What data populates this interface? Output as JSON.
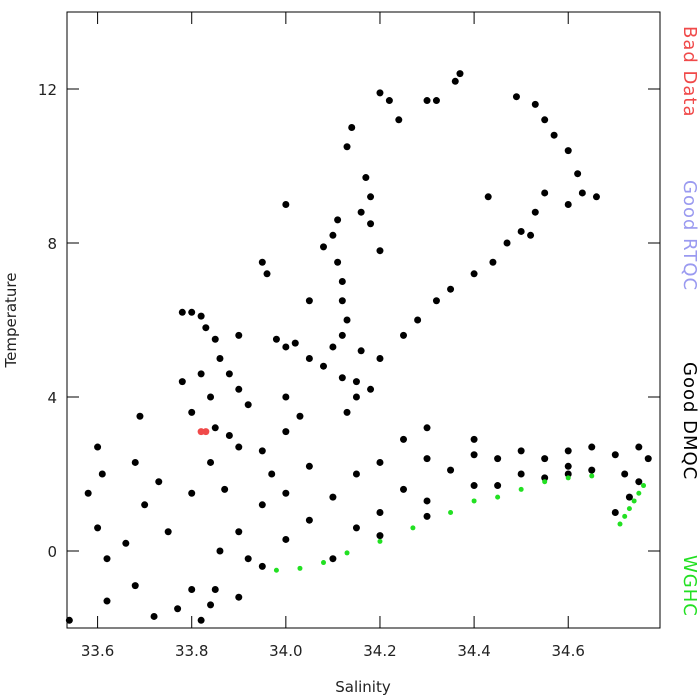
{
  "chart_data": {
    "type": "scatter",
    "x_label": "Salinity",
    "y_label": "Temperature",
    "xlim": [
      33.535,
      34.795
    ],
    "ylim": [
      -2,
      14
    ],
    "xticks": [
      33.6,
      33.8,
      {
        "value": 34,
        "label": "34.0"
      },
      34.2,
      34.4,
      34.6
    ],
    "yticks": [
      0,
      4,
      8,
      12
    ],
    "legend_position": "right",
    "series": [
      {
        "name": "Bad Data",
        "color": "#f04a4a",
        "x": [
          33.82,
          33.83
        ],
        "y": [
          3.1,
          3.1
        ]
      },
      {
        "name": "Good RTQC",
        "color": "#9a9af0",
        "x": [],
        "y": []
      },
      {
        "name": "Good DMQC",
        "color": "#000000",
        "x": [
          34.2,
          34.22,
          34.24,
          34.3,
          34.32,
          34.36,
          34.37,
          34.49,
          34.53,
          34.55,
          34.57,
          34.6,
          34.62,
          34.63,
          34.66,
          34.6,
          34.55,
          34.53,
          34.52,
          34.5,
          34.43,
          34.47,
          34.44,
          34.4,
          34.35,
          34.32,
          34.28,
          34.25,
          34.2,
          34.15,
          34.13,
          34.14,
          34.17,
          34.18,
          34.16,
          34.18,
          34.11,
          34.1,
          34.08,
          34.11,
          34.12,
          34.12,
          34.13,
          34.12,
          34.2,
          34.0,
          33.95,
          33.96,
          34.05,
          34.1,
          34.05,
          34.08,
          34.12,
          34.15,
          34.13,
          34.18,
          34.16,
          33.9,
          33.98,
          34.0,
          34.02,
          34.0,
          34.03,
          33.78,
          33.8,
          33.82,
          33.83,
          33.85,
          33.86,
          33.88,
          33.9,
          33.92,
          33.82,
          33.84,
          33.78,
          33.8,
          33.85,
          33.88,
          33.9,
          33.54,
          33.58,
          33.6,
          33.61,
          33.6,
          33.62,
          33.62,
          33.66,
          33.68,
          33.69,
          33.68,
          33.7,
          33.72,
          33.73,
          33.75,
          33.77,
          33.8,
          33.82,
          33.84,
          33.85,
          33.86,
          33.8,
          33.84,
          33.87,
          33.9,
          33.92,
          33.95,
          33.97,
          34.0,
          34.0,
          34.05,
          34.05,
          34.1,
          34.15,
          34.15,
          34.2,
          34.2,
          34.25,
          34.3,
          34.3,
          34.35,
          34.4,
          34.4,
          34.45,
          34.5,
          34.5,
          34.55,
          34.6,
          34.6,
          34.65,
          34.7,
          34.7,
          34.72,
          34.75,
          34.77,
          34.75,
          34.73,
          34.3,
          34.25,
          34.4,
          34.0,
          33.95,
          33.95,
          33.9,
          34.1,
          34.2,
          34.3,
          34.45,
          34.6,
          34.55,
          34.65
        ],
        "y": [
          11.9,
          11.7,
          11.2,
          11.7,
          11.7,
          12.2,
          12.4,
          11.8,
          11.6,
          11.2,
          10.8,
          10.4,
          9.8,
          9.3,
          9.2,
          9.0,
          9.3,
          8.8,
          8.2,
          8.3,
          9.2,
          8.0,
          7.5,
          7.2,
          6.8,
          6.5,
          6.0,
          5.6,
          5.0,
          4.4,
          10.5,
          11.0,
          9.7,
          9.2,
          8.8,
          8.5,
          8.6,
          8.2,
          7.9,
          7.5,
          7.0,
          6.5,
          6.0,
          5.6,
          7.8,
          9.0,
          7.5,
          7.2,
          6.5,
          5.3,
          5.0,
          4.8,
          4.5,
          4.0,
          3.6,
          4.2,
          5.2,
          5.6,
          5.5,
          5.3,
          5.4,
          4.0,
          3.5,
          6.2,
          6.2,
          6.1,
          5.8,
          5.5,
          5.0,
          4.6,
          4.2,
          3.8,
          4.6,
          4.0,
          4.4,
          3.6,
          3.2,
          3.0,
          2.7,
          -1.8,
          1.5,
          2.7,
          2.0,
          0.6,
          -0.2,
          -1.3,
          0.2,
          2.3,
          3.5,
          -0.9,
          1.2,
          -1.7,
          1.8,
          0.5,
          -1.5,
          -1.0,
          -1.8,
          -1.4,
          -1.0,
          0.0,
          1.5,
          2.3,
          1.6,
          0.5,
          -0.2,
          1.2,
          2.0,
          1.5,
          0.3,
          2.2,
          0.8,
          1.4,
          2.0,
          0.6,
          2.3,
          1.0,
          1.6,
          2.4,
          1.3,
          2.1,
          2.5,
          1.7,
          2.4,
          2.6,
          2.0,
          2.4,
          2.6,
          2.2,
          2.7,
          2.5,
          1.0,
          2.0,
          2.7,
          2.4,
          1.8,
          1.4,
          3.2,
          2.9,
          2.9,
          3.1,
          2.6,
          -0.4,
          -1.2,
          -0.2,
          0.4,
          0.9,
          1.7,
          2.0,
          1.9,
          2.1
        ]
      },
      {
        "name": "WGHC",
        "color": "#22e022",
        "x": [
          34.71,
          34.72,
          34.73,
          34.74,
          34.75,
          34.76,
          34.5,
          34.45,
          34.4,
          34.35,
          34.27,
          34.2,
          34.13,
          34.08,
          34.03,
          33.98,
          34.55,
          34.6,
          34.65
        ],
        "y": [
          0.7,
          0.9,
          1.1,
          1.3,
          1.5,
          1.7,
          1.6,
          1.4,
          1.3,
          1.0,
          0.6,
          0.25,
          -0.05,
          -0.3,
          -0.45,
          -0.5,
          1.8,
          1.9,
          1.95
        ]
      }
    ]
  }
}
